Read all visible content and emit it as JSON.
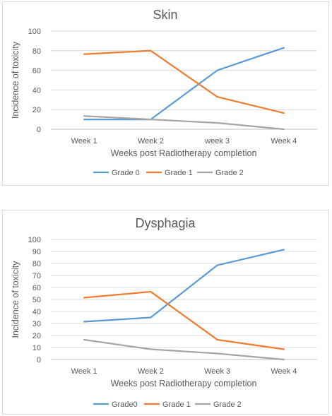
{
  "chart_data": [
    {
      "type": "line",
      "title": "Skin",
      "xlabel": "Weeks post Radiotherapy completion",
      "ylabel": "Incidence of toxicity",
      "categories": [
        "Week 1",
        "Week 2",
        "week 3",
        "Week 4"
      ],
      "yticks": [
        "0",
        "20",
        "40",
        "60",
        "80",
        "100"
      ],
      "ylim": [
        0,
        100
      ],
      "grid": true,
      "legend": "bottom",
      "series": [
        {
          "name": "Grade 0",
          "color": "#5b9bd5",
          "values": [
            10,
            10,
            60,
            83
          ]
        },
        {
          "name": "Grade 1",
          "color": "#ed7d31",
          "values": [
            76.5,
            80,
            33,
            16.5
          ]
        },
        {
          "name": "Grade 2",
          "color": "#a5a5a5",
          "values": [
            13.5,
            10,
            6.5,
            0
          ]
        }
      ]
    },
    {
      "type": "line",
      "title": "Dysphagia",
      "xlabel": "Weeks post Radiotherapy completion",
      "ylabel": "Incidence of toxicity",
      "categories": [
        "Week 1",
        "Week 2",
        "Week 3",
        "Week 4"
      ],
      "yticks": [
        "0",
        "10",
        "20",
        "30",
        "40",
        "50",
        "60",
        "70",
        "80",
        "90",
        "100"
      ],
      "ylim": [
        0,
        100
      ],
      "grid": true,
      "legend": "bottom",
      "series": [
        {
          "name": "Grade0",
          "color": "#5b9bd5",
          "values": [
            31.5,
            35,
            78.5,
            91.5
          ]
        },
        {
          "name": "Grade 1",
          "color": "#ed7d31",
          "values": [
            51.5,
            56.5,
            16.5,
            8.5
          ]
        },
        {
          "name": "Grade 2",
          "color": "#a5a5a5",
          "values": [
            16.5,
            8.5,
            5,
            0
          ]
        }
      ]
    }
  ]
}
